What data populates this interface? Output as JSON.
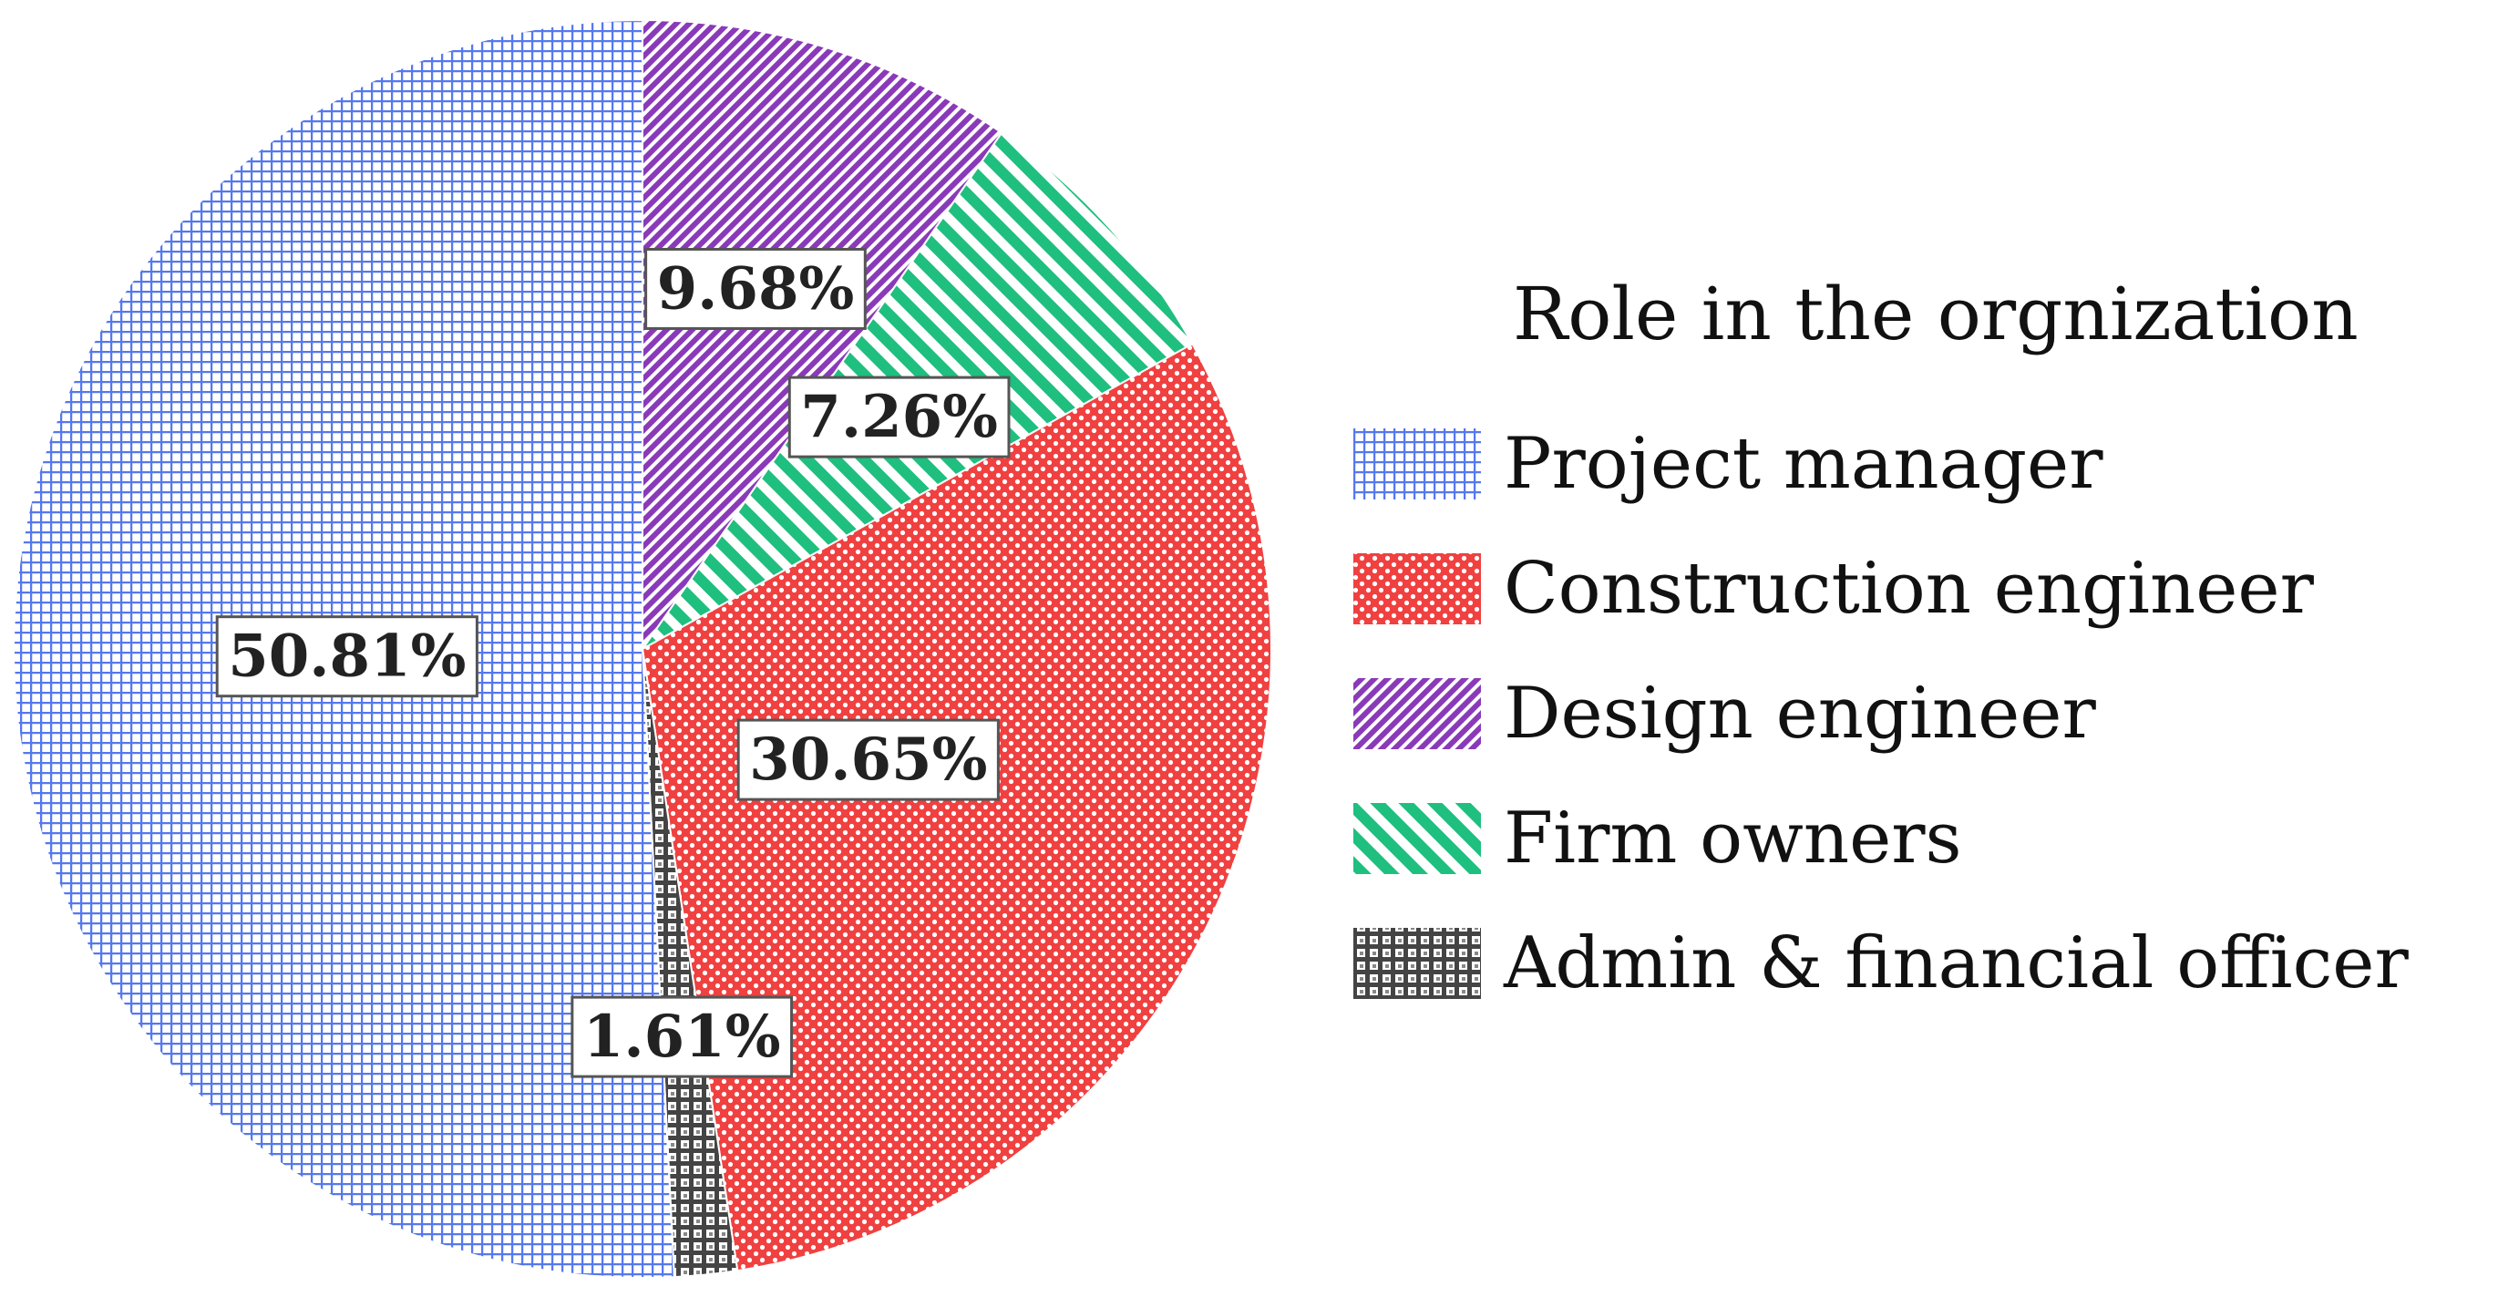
{
  "chart_data": {
    "type": "pie",
    "legend_title": "Role in the orgnization",
    "legend_position": "right",
    "start_angle_note": "clockwise-from-top",
    "slices": [
      {
        "name": "Design engineer",
        "value": 9.68,
        "label": "9.68%",
        "color": "#8a3ab9",
        "pattern": "diagonal-stripes"
      },
      {
        "name": "Firm owners",
        "value": 7.26,
        "label": "7.26%",
        "color": "#1fbf7f",
        "pattern": "diagonal-stripes-wide"
      },
      {
        "name": "Construction engineer",
        "value": 30.65,
        "label": "30.65%",
        "color": "#f04040",
        "pattern": "dots"
      },
      {
        "name": "Admin & financial officer",
        "value": 1.61,
        "label": "1.61%",
        "color": "#444444",
        "pattern": "grid-dark"
      },
      {
        "name": "Project manager",
        "value": 50.81,
        "label": "50.81%",
        "color": "#5578ee",
        "pattern": "grid-fine"
      }
    ],
    "legend_order": [
      "Project manager",
      "Construction engineer",
      "Design engineer",
      "Firm owners",
      "Admin & financial officer"
    ]
  }
}
